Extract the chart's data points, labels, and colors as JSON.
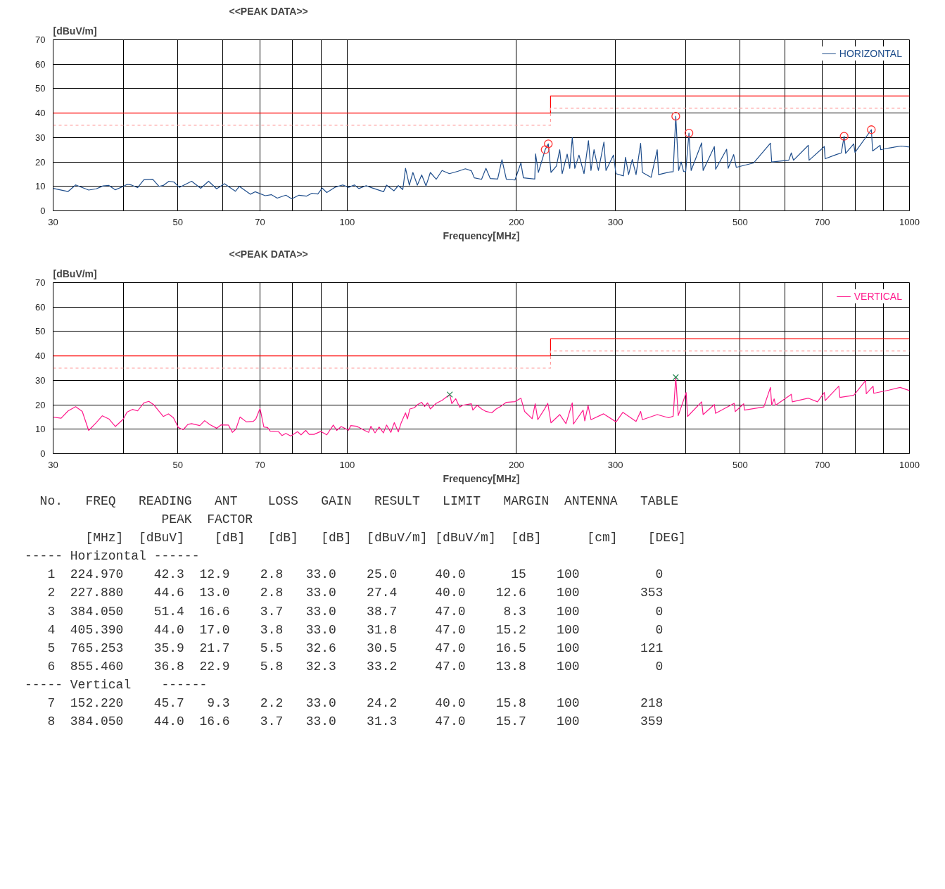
{
  "chart_data": [
    {
      "type": "line",
      "title": "<<PEAK DATA>>",
      "ylabel": "[dBuV/m]",
      "xlabel": "Frequency[MHz]",
      "log": "x",
      "grid": true,
      "legend": "top right",
      "xlim": [
        30,
        1000
      ],
      "ylim": [
        0,
        70
      ],
      "yticks": [
        0,
        10,
        20,
        30,
        40,
        50,
        60,
        70
      ],
      "xticks": [
        30,
        {
          "value": 40,
          "label": null
        },
        50,
        {
          "value": 60,
          "label": null
        },
        70,
        {
          "value": 80,
          "label": null
        },
        {
          "value": 90,
          "label": null
        },
        100,
        200,
        300,
        {
          "value": 400,
          "label": null
        },
        500,
        {
          "value": 600,
          "label": null
        },
        700,
        {
          "value": 800,
          "label": null
        },
        {
          "value": 900,
          "label": null
        },
        1000
      ],
      "series": [
        {
          "type": "line",
          "color": "#ff0000",
          "line_style": "solid",
          "x": [
            30,
            230,
            230,
            1000
          ],
          "values": [
            40,
            40,
            47,
            47
          ]
        },
        {
          "type": "line",
          "color": "#ff9999",
          "line_style": "dashed",
          "x": [
            30,
            230,
            230,
            1000
          ],
          "values": [
            35,
            35,
            42,
            42
          ]
        },
        {
          "type": "line",
          "name": "HORIZONTAL",
          "color": "#1f4e8c",
          "line_style": "solid",
          "x": [
            30,
            31.9,
            32.9,
            34.7,
            35.8,
            36.8,
            37.7,
            38.7,
            40,
            40.6,
            41.3,
            42.4,
            43.5,
            45.1,
            46.3,
            47.1,
            48.2,
            49.2,
            50.3,
            52.9,
            54.9,
            56.7,
            58.6,
            60.5,
            63.3,
            64.3,
            67.3,
            68.6,
            71.5,
            73.3,
            75.1,
            77.8,
            79.7,
            82.1,
            84.6,
            86.6,
            88.7,
            90.3,
            92.0,
            95.3,
            98.2,
            100.6,
            103.0,
            104.9,
            108.1,
            110.7,
            116.1,
            117.5,
            121.1,
            123.3,
            125.6,
            127.0,
            129.0,
            130.9,
            133.3,
            135.7,
            138.1,
            140.6,
            144.0,
            147.5,
            152.0,
            157.5,
            162.3,
            166.3,
            168.3,
            173.4,
            176.5,
            179.7,
            185.2,
            188.5,
            191.9,
            198.8,
            203.7,
            205.8,
            215.6,
            216.3,
            218.8,
            224.97,
            227.88,
            230.4,
            235.6,
            238.8,
            241.2,
            246.2,
            248.8,
            251.4,
            254.0,
            258.4,
            263.8,
            268.6,
            271.4,
            274.8,
            279.8,
            286.2,
            288.6,
            297.6,
            300.6,
            310.0,
            312.6,
            316.6,
            321.4,
            326.4,
            332.6,
            335.0,
            347.2,
            356.0,
            358.0,
            373.0,
            380,
            384.05,
            388.6,
            392.6,
            396.6,
            400,
            405.39,
            409.0,
            427.0,
            429.6,
            449.8,
            452.2,
            473.0,
            476,
            486.8,
            492.0,
            528.4,
            566.0,
            568.8,
            610.0,
            616.4,
            622,
            660.8,
            663,
            705.6,
            708,
            741,
            756.4,
            765.253,
            770,
            796,
            800,
            855.46,
            860,
            886.8,
            889,
            919.2,
            967.2,
            1000
          ],
          "values": [
            9.2,
            7.9,
            10.6,
            8.5,
            9.0,
            10.2,
            10.4,
            8.6,
            10,
            10.8,
            10.6,
            9.5,
            12.7,
            12.9,
            10,
            10.4,
            12.1,
            11.8,
            9.6,
            12.1,
            9.2,
            12.1,
            9.0,
            11.1,
            8.0,
            10,
            6.8,
            7.8,
            6.2,
            6.6,
            5.2,
            6.4,
            4.9,
            6.4,
            6.0,
            7.2,
            6.9,
            9.3,
            7.5,
            9.7,
            10.6,
            9.6,
            10.6,
            9.1,
            10.3,
            9.4,
            7.8,
            10.5,
            8.2,
            10.3,
            8.7,
            17.4,
            10.5,
            15.7,
            10.5,
            14.7,
            10.2,
            15.7,
            12.9,
            16.5,
            15.2,
            16.2,
            17.2,
            16.4,
            13.5,
            12.9,
            17.4,
            13.2,
            13.0,
            20.9,
            12.9,
            12.6,
            19.6,
            13.5,
            13.0,
            23.3,
            15.7,
            25.0,
            27.4,
            15.7,
            18.3,
            25.0,
            15.2,
            23.2,
            17.4,
            30.0,
            17.4,
            22.8,
            15.2,
            28.7,
            16.5,
            25.0,
            16.5,
            28.1,
            16.5,
            22.8,
            15.2,
            14.3,
            21.9,
            14.8,
            21.0,
            14.8,
            27.6,
            15.7,
            13.7,
            25.0,
            14.8,
            15.8,
            16.0,
            38.7,
            16.5,
            20,
            16.1,
            16.0,
            31.8,
            16.5,
            27.8,
            16.5,
            26.3,
            17.0,
            25.2,
            17.4,
            23.0,
            17.8,
            19.6,
            27.7,
            20.0,
            20.7,
            23.7,
            20.7,
            26.8,
            20.7,
            26.3,
            21.3,
            23.0,
            23.7,
            30.5,
            23.5,
            27.4,
            23.9,
            33.2,
            24.5,
            26.8,
            25.0,
            25.7,
            26.5,
            26.1
          ]
        },
        {
          "type": "scatter",
          "marker": "circle",
          "color": "#ff3333",
          "x": [
            224.97,
            227.88,
            384.05,
            405.39,
            765.253,
            855.46
          ],
          "values": [
            25.0,
            27.4,
            38.7,
            31.8,
            30.5,
            33.2
          ]
        }
      ]
    },
    {
      "type": "line",
      "title": "<<PEAK DATA>>",
      "ylabel": "[dBuV/m]",
      "xlabel": "Frequency[MHz]",
      "log": "x",
      "grid": true,
      "legend": "top right",
      "xlim": [
        30,
        1000
      ],
      "ylim": [
        0,
        70
      ],
      "yticks": [
        0,
        10,
        20,
        30,
        40,
        50,
        60,
        70
      ],
      "xticks": [
        30,
        {
          "value": 40,
          "label": null
        },
        50,
        {
          "value": 60,
          "label": null
        },
        70,
        {
          "value": 80,
          "label": null
        },
        {
          "value": 90,
          "label": null
        },
        100,
        200,
        300,
        {
          "value": 400,
          "label": null
        },
        500,
        {
          "value": 600,
          "label": null
        },
        700,
        {
          "value": 800,
          "label": null
        },
        {
          "value": 900,
          "label": null
        },
        1000
      ],
      "series": [
        {
          "type": "line",
          "color": "#ff0000",
          "line_style": "solid",
          "x": [
            30,
            230,
            230,
            1000
          ],
          "values": [
            40,
            40,
            47,
            47
          ]
        },
        {
          "type": "line",
          "color": "#ff9999",
          "line_style": "dashed",
          "x": [
            30,
            230,
            230,
            1000
          ],
          "values": [
            35,
            35,
            42,
            42
          ]
        },
        {
          "type": "line",
          "name": "VERTICAL",
          "color": "#ff1a8c",
          "line_style": "solid",
          "x": [
            30,
            31.0,
            31.9,
            32.9,
            33.8,
            34.7,
            35.8,
            36.7,
            37.7,
            38.7,
            40,
            40.6,
            41.5,
            42.4,
            43.5,
            44.4,
            45.3,
            47.1,
            48.1,
            49.1,
            50.1,
            51.1,
            52.1,
            52.9,
            54.7,
            55.8,
            57.0,
            58.6,
            59.7,
            61.5,
            62.5,
            63.4,
            64.5,
            66.2,
            68.1,
            68.8,
            70.0,
            71.1,
            72.2,
            73.0,
            75.5,
            76.6,
            77.8,
            79.4,
            81.6,
            82.8,
            84.4,
            85.6,
            87.3,
            89.8,
            92.0,
            94.5,
            95.8,
            97.6,
            100.6,
            101.5,
            104.0,
            107.4,
            109.2,
            110.2,
            112.1,
            114.0,
            116.0,
            117.5,
            119.6,
            121.3,
            123.3,
            124.8,
            127.0,
            128.0,
            129.3,
            131.7,
            133.3,
            135.7,
            137.3,
            139.0,
            140.6,
            144.0,
            147.5,
            152.22,
            153.5,
            156,
            158.5,
            160.4,
            166.3,
            167.3,
            170.3,
            173.4,
            176.5,
            180.8,
            184.1,
            187.4,
            191.9,
            198.8,
            203.7,
            206.8,
            213.3,
            216,
            218.3,
            224.6,
            227.4,
            230.4,
            238.8,
            245,
            251.4,
            252.6,
            262.8,
            264.6,
            268.2,
            271.4,
            285.8,
            300.8,
            309.2,
            326.4,
            332.6,
            335,
            356,
            373,
            380,
            384.05,
            388,
            400.8,
            403,
            427,
            429.6,
            449.8,
            452,
            487.8,
            490,
            507.2,
            509,
            550.8,
            566,
            568.8,
            574.6,
            578,
            616.4,
            619,
            661,
            686.2,
            705.6,
            708,
            748.8,
            752,
            796,
            835.6,
            838,
            861.6,
            864,
            919,
            962.4,
            1000
          ],
          "values": [
            14.9,
            14.5,
            17.5,
            19.2,
            17.3,
            9.5,
            12.7,
            15.5,
            14.2,
            11.1,
            14.2,
            17.0,
            18.1,
            17.5,
            20.8,
            21.4,
            20.0,
            15.2,
            16.3,
            14.7,
            10.7,
            9.8,
            12.0,
            12.3,
            11.5,
            13.5,
            11.9,
            10.4,
            11.8,
            11.7,
            8.7,
            10.0,
            15.0,
            13.0,
            13.2,
            14.2,
            18.5,
            10.9,
            10.7,
            9.2,
            9.0,
            7.4,
            8.3,
            7.2,
            9.0,
            7.7,
            9.5,
            7.9,
            7.9,
            9.1,
            7.7,
            11.7,
            9.5,
            11.1,
            9.6,
            11.5,
            11.2,
            9.5,
            8.7,
            11.2,
            8.5,
            10.9,
            8.5,
            11.7,
            8.7,
            12.7,
            8.9,
            12.7,
            16.7,
            14.2,
            18.3,
            18.8,
            20.0,
            21.0,
            19.3,
            20.8,
            18.3,
            20.6,
            21.8,
            24.2,
            20.5,
            22.5,
            19.0,
            19.8,
            20.4,
            17.8,
            19.8,
            18.3,
            17.3,
            16.7,
            18.3,
            19.3,
            21.0,
            21.3,
            22.7,
            17.3,
            14.3,
            20.4,
            13.9,
            18.4,
            20.6,
            12.6,
            16.0,
            12.3,
            20.8,
            12.1,
            17.8,
            13.4,
            19.7,
            13.9,
            16.3,
            13.0,
            16.9,
            13.2,
            17.3,
            13.9,
            16.0,
            14.7,
            15.3,
            31.3,
            15.6,
            25.0,
            15.2,
            21.2,
            16.0,
            20.1,
            16.5,
            20.6,
            17.2,
            20.4,
            17.8,
            19.1,
            27.1,
            19.9,
            22.4,
            19.8,
            24.3,
            21.2,
            22.7,
            21.2,
            25.0,
            21.7,
            27.6,
            23.0,
            23.9,
            29.9,
            24.5,
            27.6,
            24.7,
            26.0,
            27.1,
            25.8
          ]
        },
        {
          "type": "scatter",
          "marker": "cross",
          "color": "#2e8b57",
          "x": [
            152.22,
            384.05
          ],
          "values": [
            24.2,
            31.3
          ]
        }
      ]
    },
    {
      "type": "other",
      "annotations": [
        "  No.   FREQ   READING   ANT    LOSS   GAIN   RESULT   LIMIT   MARGIN  ANTENNA   TABLE",
        "                  PEAK  FACTOR",
        "        [MHz]  [dBuV]    [dB]   [dB]   [dB]  [dBuV/m] [dBuV/m]  [dB]      [cm]    [DEG]",
        "----- Horizontal ------",
        "   1  224.970    42.3  12.9    2.8   33.0    25.0     40.0      15    100          0",
        "   2  227.880    44.6  13.0    2.8   33.0    27.4     40.0    12.6    100        353",
        "   3  384.050    51.4  16.6    3.7   33.0    38.7     47.0     8.3    100          0",
        "   4  405.390    44.0  17.0    3.8   33.0    31.8     47.0    15.2    100          0",
        "   5  765.253    35.9  21.7    5.5   32.6    30.5     47.0    16.5    100        121",
        "   6  855.460    36.8  22.9    5.8   32.3    33.2     47.0    13.8    100          0",
        "----- Vertical    ------",
        "   7  152.220    45.7   9.3    2.2   33.0    24.2     40.0    15.8    100        218",
        "   8  384.050    44.0  16.6    3.7   33.0    31.3     47.0    15.7    100        359"
      ]
    }
  ]
}
